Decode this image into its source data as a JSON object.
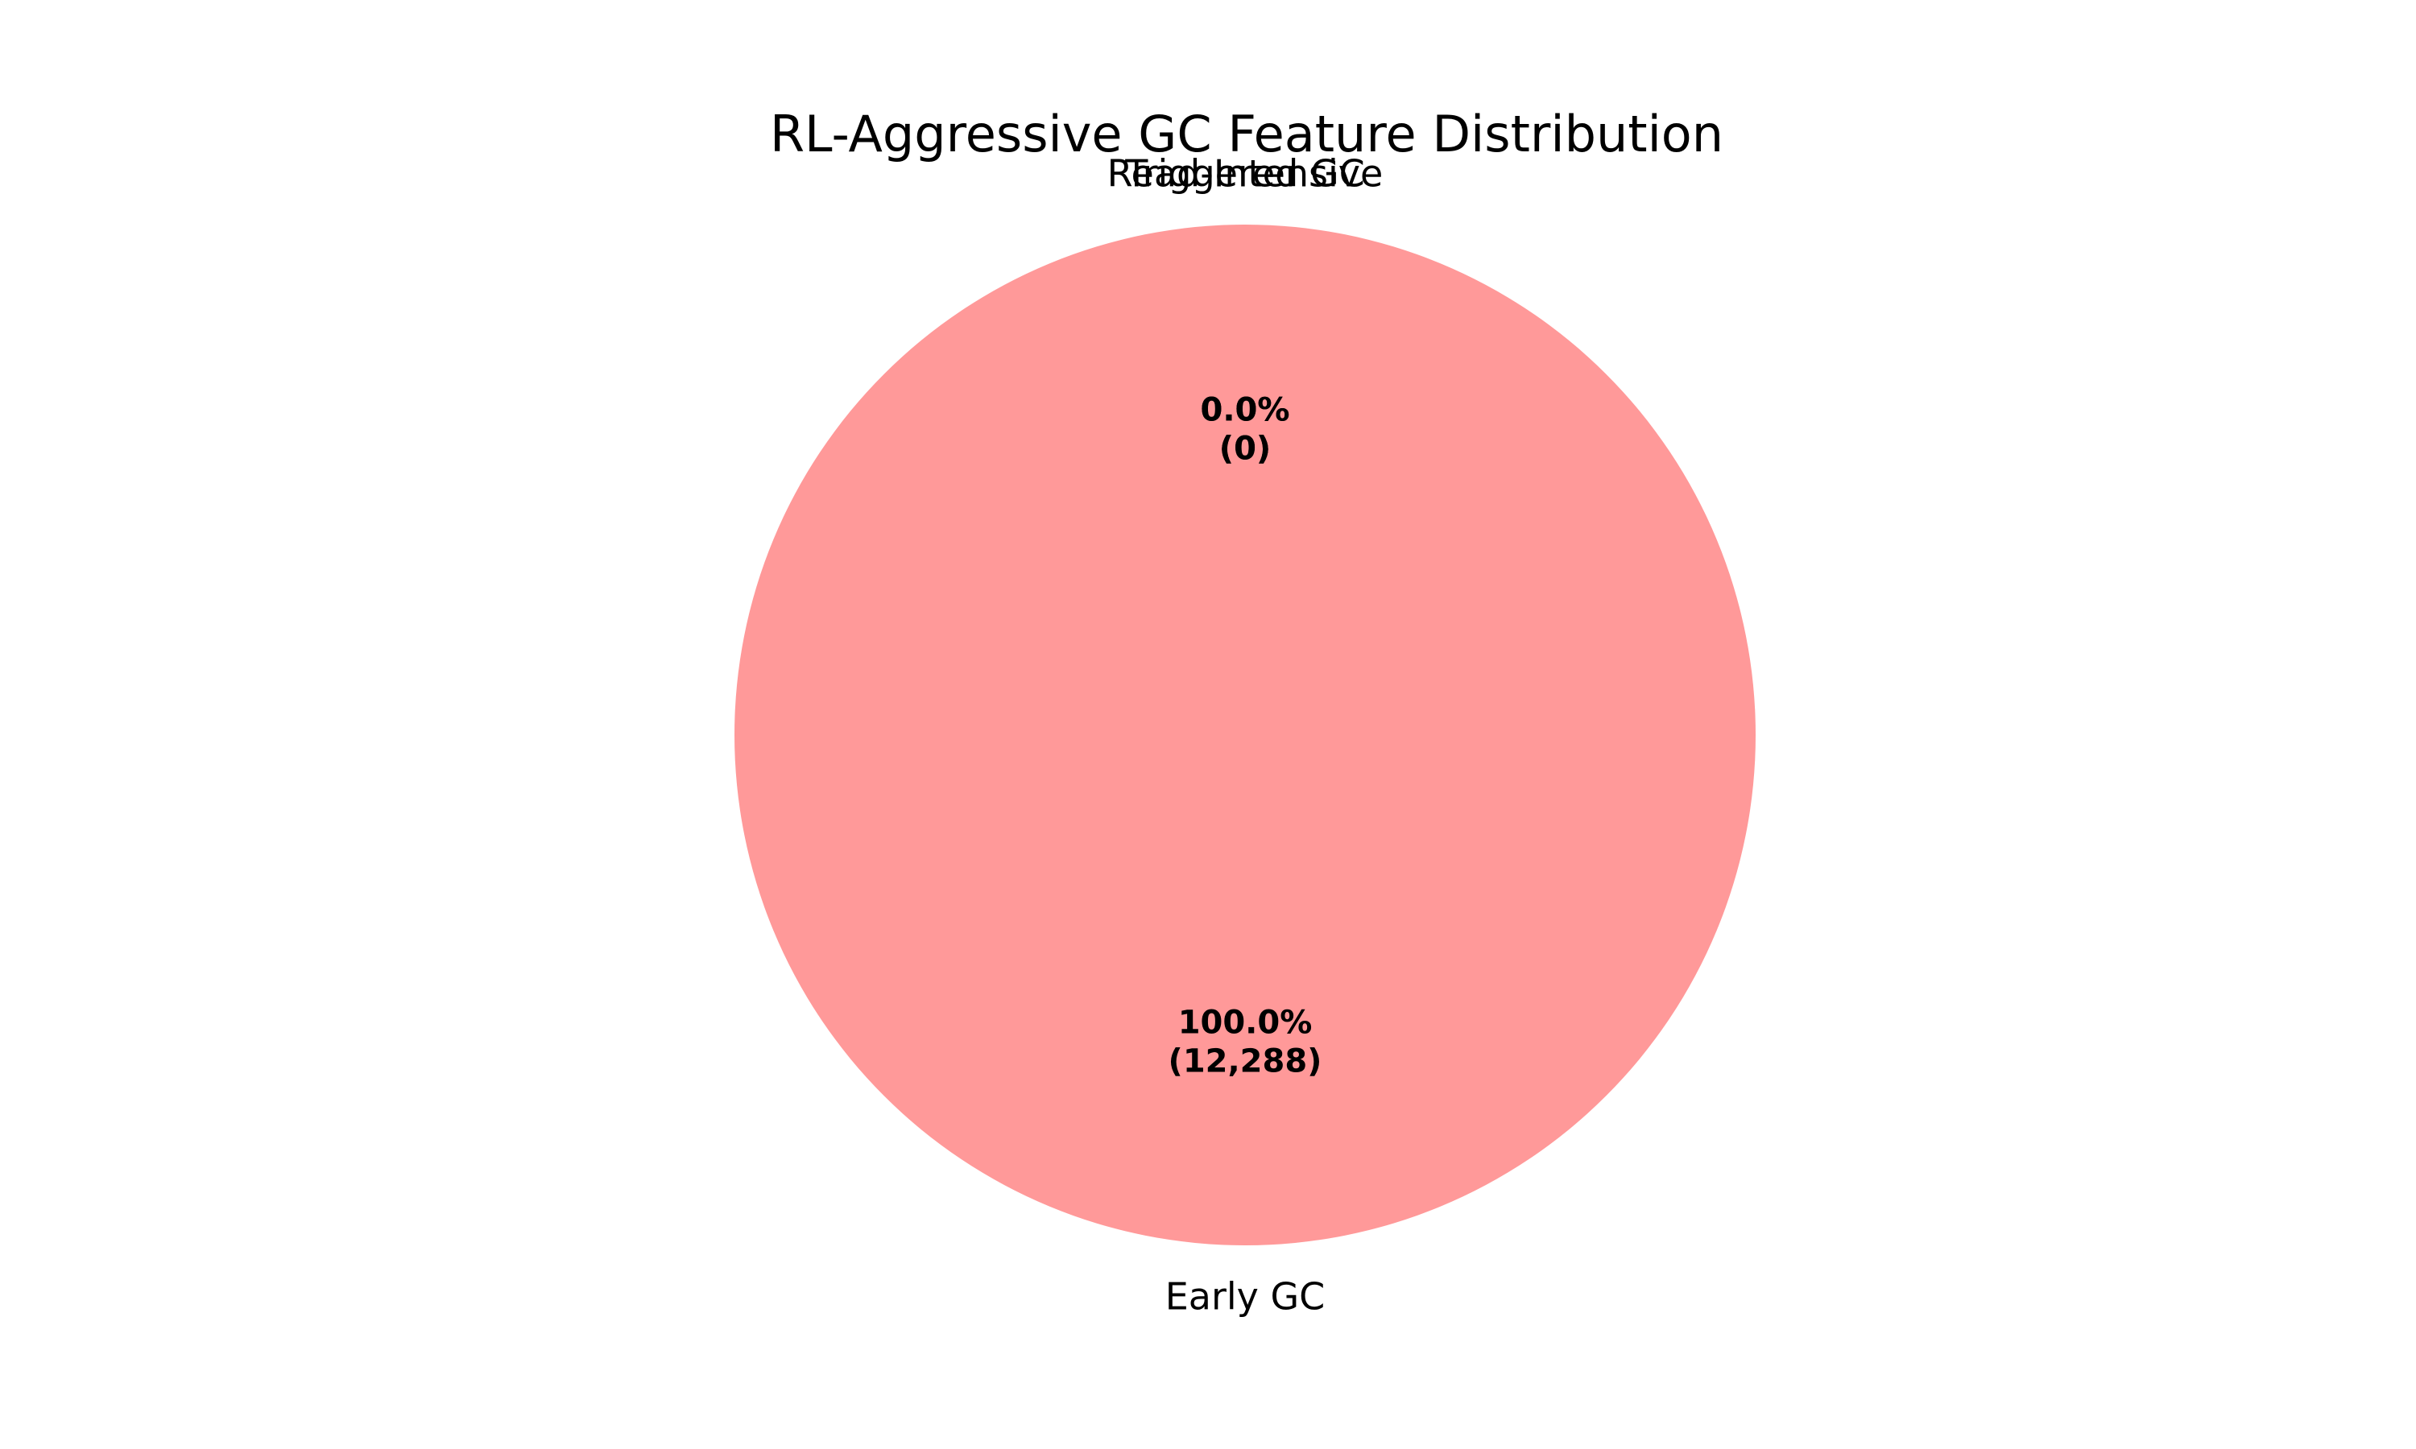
{
  "chart_data": {
    "type": "pie",
    "title": "RL-Aggressive GC Feature Distribution",
    "slices": [
      {
        "label": "Early GC",
        "value": 12288,
        "percent_label": "100.0%",
        "count_label": "(12,288)",
        "color": "#ff9999"
      },
      {
        "label": "Read-Intensive",
        "value": 0,
        "percent_label": "0.0%",
        "count_label": "(0)",
        "color": "#66b3ff"
      },
      {
        "label": "Triggered GC",
        "value": 0,
        "percent_label": "0.0%",
        "count_label": "(0)",
        "color": "#99ff99"
      }
    ]
  }
}
